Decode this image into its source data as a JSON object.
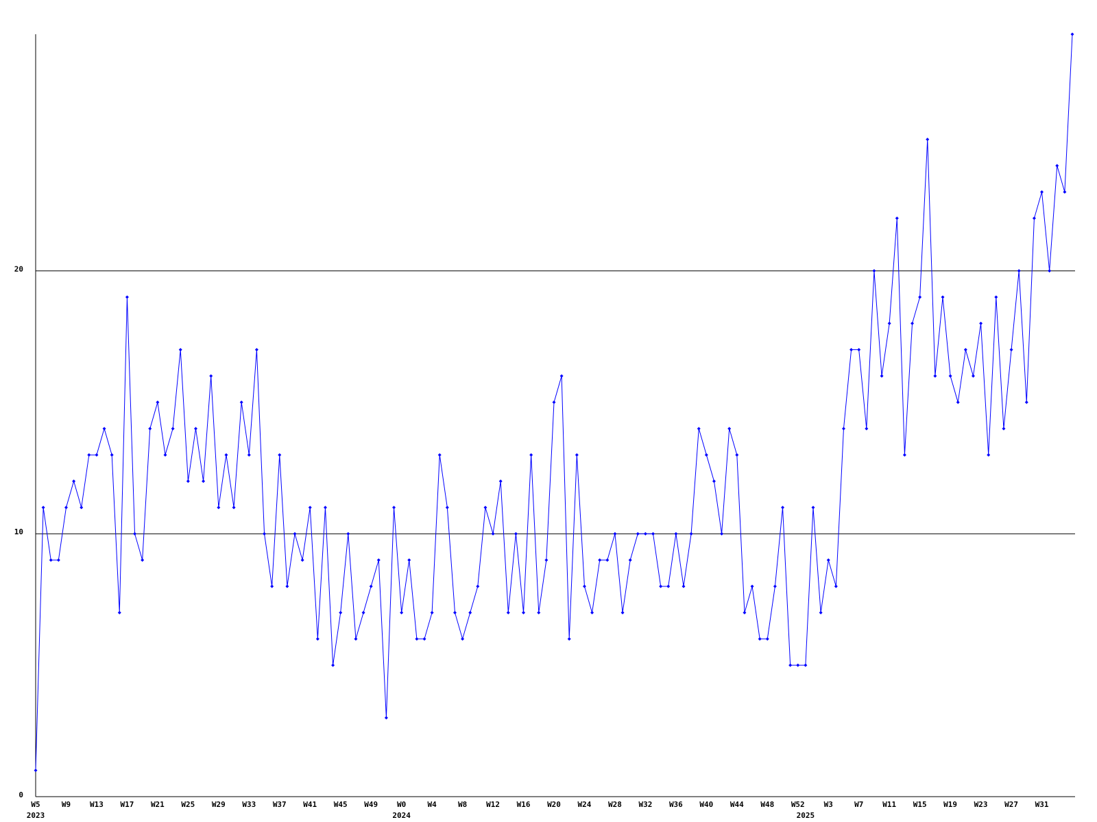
{
  "chart_data": {
    "type": "line",
    "categories": [
      "W5",
      null,
      null,
      null,
      "W9",
      null,
      null,
      null,
      "W13",
      null,
      null,
      null,
      "W17",
      null,
      null,
      null,
      "W21",
      null,
      null,
      null,
      "W25",
      null,
      null,
      null,
      "W29",
      null,
      null,
      null,
      "W33",
      null,
      null,
      null,
      "W37",
      null,
      null,
      null,
      "W41",
      null,
      null,
      null,
      "W45",
      null,
      null,
      null,
      "W49",
      null,
      null,
      null,
      "W0",
      null,
      null,
      null,
      "W4",
      null,
      null,
      null,
      "W8",
      null,
      null,
      null,
      "W12",
      null,
      null,
      null,
      "W16",
      null,
      null,
      null,
      "W20",
      null,
      null,
      null,
      "W24",
      null,
      null,
      null,
      "W28",
      null,
      null,
      null,
      "W32",
      null,
      null,
      null,
      "W36",
      null,
      null,
      null,
      "W40",
      null,
      null,
      null,
      "W44",
      null,
      null,
      null,
      "W48",
      null,
      null,
      null,
      "W52",
      null,
      null,
      null,
      "W3",
      null,
      null,
      null,
      "W7",
      null,
      null,
      null,
      "W11",
      null,
      null,
      null,
      "W15",
      null,
      null,
      null,
      "W19",
      null,
      null,
      null,
      "W23",
      null,
      null,
      null,
      "W27",
      null,
      null,
      null,
      "W31",
      null,
      null,
      null,
      null
    ],
    "year_labels": [
      {
        "start": 0,
        "label": "2023"
      },
      {
        "start": 48,
        "label": "2024"
      },
      {
        "start": 101,
        "label": "2025"
      }
    ],
    "series": [
      {
        "color": "#0000ff",
        "values": [
          1,
          11,
          9,
          9,
          11,
          12,
          11,
          13,
          13,
          14,
          13,
          7,
          19,
          10,
          9,
          14,
          15,
          13,
          14,
          17,
          12,
          14,
          12,
          16,
          11,
          13,
          11,
          15,
          13,
          17,
          10,
          8,
          13,
          8,
          10,
          9,
          11,
          6,
          11,
          5,
          7,
          10,
          6,
          7,
          8,
          9,
          3,
          11,
          7,
          9,
          6,
          6,
          7,
          13,
          11,
          7,
          6,
          7,
          8,
          11,
          10,
          12,
          7,
          10,
          7,
          13,
          7,
          9,
          15,
          16,
          6,
          13,
          8,
          7,
          9,
          9,
          10,
          7,
          9,
          10,
          10,
          10,
          8,
          8,
          10,
          8,
          10,
          14,
          13,
          12,
          10,
          14,
          13,
          7,
          8,
          6,
          6,
          8,
          11,
          5,
          5,
          5,
          11,
          7,
          9,
          8,
          14,
          17,
          17,
          14,
          20,
          16,
          18,
          22,
          13,
          18,
          19,
          25,
          16,
          19,
          16,
          15,
          17,
          16,
          18,
          13,
          19,
          14,
          17,
          20,
          15,
          22,
          23,
          20,
          24,
          23,
          29
        ]
      }
    ],
    "ylim": [
      0,
      29
    ],
    "yticks": [
      0,
      10,
      20
    ],
    "grid": true
  }
}
